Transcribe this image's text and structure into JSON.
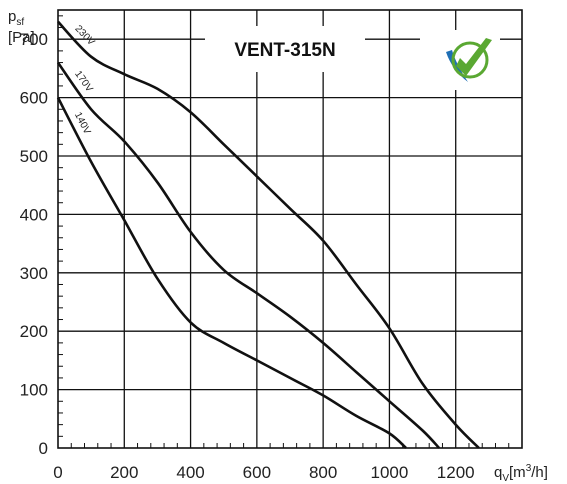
{
  "chart_data": {
    "type": "line",
    "title": "VENT-315N",
    "ylabel": {
      "main": "p",
      "sub": "sf",
      "unit": "[Pa]"
    },
    "xlabel": {
      "main": "q",
      "sub": "V",
      "unit": "[m",
      "sup": "3",
      "unit_end": "/h]"
    },
    "xlim": [
      0,
      1400
    ],
    "ylim": [
      0,
      750
    ],
    "x_ticks": [
      "0",
      "200",
      "400",
      "600",
      "800",
      "1000",
      "1200"
    ],
    "y_ticks": [
      "0",
      "100",
      "200",
      "300",
      "400",
      "500",
      "600",
      "700"
    ],
    "grid": true,
    "colors": {
      "line": "#111111",
      "grid": "#111111",
      "logo_green": "#5aa832",
      "logo_blue": "#1f6fb5"
    },
    "logo_icon": "check-badge-icon",
    "series": [
      {
        "name": "230V",
        "points": [
          [
            0,
            730
          ],
          [
            100,
            670
          ],
          [
            200,
            640
          ],
          [
            300,
            615
          ],
          [
            400,
            575
          ],
          [
            500,
            520
          ],
          [
            600,
            465
          ],
          [
            700,
            410
          ],
          [
            800,
            355
          ],
          [
            900,
            280
          ],
          [
            1000,
            205
          ],
          [
            1100,
            110
          ],
          [
            1200,
            40
          ],
          [
            1270,
            0
          ]
        ]
      },
      {
        "name": "170V",
        "points": [
          [
            0,
            660
          ],
          [
            100,
            580
          ],
          [
            200,
            525
          ],
          [
            300,
            455
          ],
          [
            400,
            370
          ],
          [
            500,
            305
          ],
          [
            600,
            265
          ],
          [
            700,
            225
          ],
          [
            800,
            180
          ],
          [
            900,
            130
          ],
          [
            1000,
            80
          ],
          [
            1100,
            30
          ],
          [
            1150,
            0
          ]
        ]
      },
      {
        "name": "140V",
        "points": [
          [
            0,
            600
          ],
          [
            100,
            490
          ],
          [
            200,
            390
          ],
          [
            300,
            290
          ],
          [
            400,
            215
          ],
          [
            500,
            180
          ],
          [
            600,
            150
          ],
          [
            700,
            120
          ],
          [
            800,
            90
          ],
          [
            900,
            55
          ],
          [
            1000,
            25
          ],
          [
            1050,
            0
          ]
        ]
      }
    ]
  }
}
